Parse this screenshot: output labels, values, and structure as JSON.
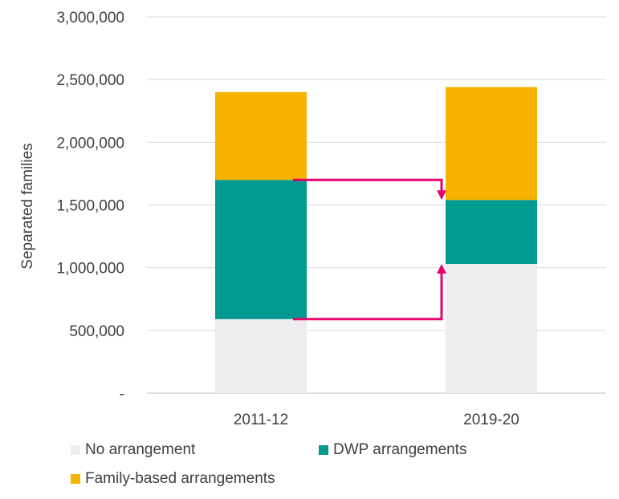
{
  "chart_data": {
    "type": "bar",
    "stacked": true,
    "categories": [
      "2011-12",
      "2019-20"
    ],
    "ylabel": "Separated families",
    "ylim": [
      0,
      3000000
    ],
    "y_ticks": [
      {
        "value": 0,
        "label": "-"
      },
      {
        "value": 500000,
        "label": "500,000"
      },
      {
        "value": 1000000,
        "label": "1,000,000"
      },
      {
        "value": 1500000,
        "label": "1,500,000"
      },
      {
        "value": 2000000,
        "label": "2,000,000"
      },
      {
        "value": 2500000,
        "label": "2,500,000"
      },
      {
        "value": 3000000,
        "label": "3,000,000"
      }
    ],
    "series": [
      {
        "name": "No arrangement",
        "color": "#eeecee",
        "values": [
          590000,
          1030000
        ]
      },
      {
        "name": "DWP arrangements",
        "color": "#009a90",
        "values": [
          1110000,
          510000
        ]
      },
      {
        "name": "Family-based arrangements",
        "color": "#f7b200",
        "values": [
          700000,
          900000
        ]
      }
    ],
    "arrow_color": "#e6006e",
    "grid": true,
    "legend": "bottom"
  }
}
